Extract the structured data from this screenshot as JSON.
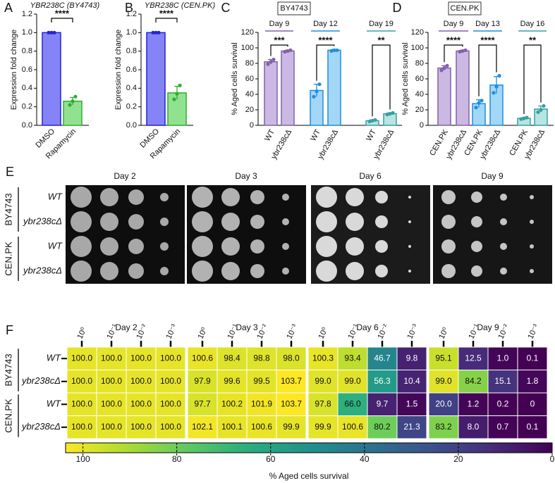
{
  "chart_data": [
    {
      "type": "bar",
      "panel": "A",
      "title": "YBR238C (BY4743)",
      "ylabel": "Expression fold change",
      "categories": [
        "DMSO",
        "Rapamycin"
      ],
      "values": [
        1.0,
        0.26
      ],
      "errors": [
        0,
        0.04
      ],
      "points": [
        [
          1,
          1,
          1
        ],
        [
          0.22,
          0.26,
          0.31
        ]
      ],
      "colors": [
        "#8484f7",
        "#90e290"
      ],
      "edge_colors": [
        "#2424d4",
        "#2fae2f"
      ],
      "significance": "****",
      "ylim": [
        0,
        1.2
      ],
      "yticks": [
        {
          "value": 0,
          "label": "0.0"
        },
        0.2,
        0.4,
        0.6,
        0.8,
        {
          "value": 1,
          "label": "1.0"
        },
        1.2
      ]
    },
    {
      "type": "bar",
      "panel": "B",
      "title": "YBR238C (CEN.PK)",
      "ylabel": "Expression fold change",
      "categories": [
        "DMSO",
        "Rapamycin"
      ],
      "values": [
        1.0,
        0.35
      ],
      "errors": [
        0,
        0.07
      ],
      "points": [
        [
          1,
          1,
          1
        ],
        [
          0.28,
          0.34,
          0.43
        ]
      ],
      "colors": [
        "#8484f7",
        "#90e290"
      ],
      "edge_colors": [
        "#2424d4",
        "#2fae2f"
      ],
      "significance": "****",
      "ylim": [
        0,
        1.2
      ],
      "yticks": [
        {
          "value": 0,
          "label": "0.0"
        },
        0.2,
        0.4,
        0.6,
        0.8,
        {
          "value": 1,
          "label": "1.0"
        },
        1.2
      ]
    },
    {
      "type": "grouped_bar",
      "panel": "C",
      "title": "BY4743",
      "ylabel": "% Aged cells survival",
      "ylim": [
        0,
        120
      ],
      "yticks": [
        0,
        20,
        40,
        60,
        80,
        100,
        120
      ],
      "groups": [
        {
          "name": "Day 9",
          "color": "#cbb9e3",
          "edge_color": "#8160ad",
          "categories": [
            "WT",
            "ybr238cΔ"
          ],
          "values": [
            82,
            96
          ],
          "errors": [
            3,
            1
          ],
          "points": [
            [
              79,
              82,
              85
            ],
            [
              95,
              96,
              97
            ]
          ],
          "significance": "***"
        },
        {
          "name": "Day 12",
          "color": "#a3d7f6",
          "edge_color": "#1e8ee0",
          "categories": [
            "WT",
            "ybr238cΔ"
          ],
          "values": [
            45,
            97
          ],
          "errors": [
            8,
            1
          ],
          "points": [
            [
              37,
              44,
              53
            ],
            [
              96,
              97,
              97
            ]
          ],
          "significance": "****"
        },
        {
          "name": "Day 19",
          "color": "#b8e4e4",
          "edge_color": "#38a0a0",
          "categories": [
            "WT",
            "ybr238cΔ"
          ],
          "values": [
            6,
            15
          ],
          "errors": [
            1,
            1
          ],
          "points": [
            [
              5,
              6,
              7
            ],
            [
              14,
              15,
              16
            ]
          ],
          "significance": "**"
        }
      ]
    },
    {
      "type": "grouped_bar",
      "panel": "D",
      "title": "CEN.PK",
      "ylabel": "% Aged cells survival",
      "ylim": [
        0,
        120
      ],
      "yticks": [
        0,
        20,
        40,
        60,
        80,
        100,
        120
      ],
      "groups": [
        {
          "name": "Day 9",
          "color": "#cbb9e3",
          "edge_color": "#8160ad",
          "categories": [
            "CEN.PK",
            "ybr238cΔ"
          ],
          "values": [
            74,
            96
          ],
          "errors": [
            3,
            1
          ],
          "points": [
            [
              71,
              74,
              77
            ],
            [
              95,
              96,
              97
            ]
          ],
          "significance": "****"
        },
        {
          "name": "Day 13",
          "color": "#a3d7f6",
          "edge_color": "#1e8ee0",
          "categories": [
            "CEN.PK",
            "ybr238cΔ"
          ],
          "values": [
            28,
            52
          ],
          "errors": [
            5,
            11
          ],
          "points": [
            [
              23,
              29,
              32
            ],
            [
              42,
              50,
              64
            ]
          ],
          "significance": "****"
        },
        {
          "name": "Day 16",
          "color": "#b8e4e4",
          "edge_color": "#38a0a0",
          "categories": [
            "CEN.PK",
            "ybr238cΔ"
          ],
          "values": [
            9,
            21
          ],
          "errors": [
            1,
            4
          ],
          "points": [
            [
              8,
              9,
              10
            ],
            [
              17,
              20,
              25
            ]
          ],
          "significance": "**"
        }
      ]
    },
    {
      "type": "heatmap",
      "panel": "F",
      "columns": [
        "Day 2",
        "Day 3",
        "Day 6",
        "Day 9"
      ],
      "dilutions": [
        "10⁰",
        "10⁻¹",
        "10⁻²",
        "10⁻³"
      ],
      "row_groups": [
        {
          "name": "BY4743",
          "rows": [
            "WT",
            "ybr238cΔ"
          ]
        },
        {
          "name": "CEN.PK",
          "rows": [
            "WT",
            "ybr238cΔ"
          ]
        }
      ],
      "values": [
        [
          100,
          100,
          100,
          100,
          100.6,
          98.4,
          98.8,
          98,
          100.3,
          93.4,
          46.7,
          9.8,
          95.1,
          12.5,
          1,
          0.1
        ],
        [
          100,
          100,
          100,
          100,
          97.9,
          99.6,
          99.5,
          103.7,
          99,
          99,
          56.3,
          10.4,
          99,
          84.2,
          15.1,
          1.8
        ],
        [
          100,
          100,
          100,
          100,
          97.7,
          100.2,
          101.9,
          103.7,
          97.8,
          66,
          9.7,
          1.5,
          20,
          1.2,
          0.2,
          0
        ],
        [
          100,
          100,
          100,
          100,
          102.1,
          100.1,
          100.6,
          99.9,
          99.9,
          100.6,
          80.2,
          21.3,
          83.2,
          8,
          0.7,
          0.1
        ]
      ],
      "value_labels": [
        [
          "100.0",
          "100.0",
          "100.0",
          "100.0",
          "100.6",
          "98.4",
          "98.8",
          "98.0",
          "100.3",
          "93.4",
          "46.7",
          "9.8",
          "95.1",
          "12.5",
          "1.0",
          "0.1"
        ],
        [
          "100.0",
          "100.0",
          "100.0",
          "100.0",
          "97.9",
          "99.6",
          "99.5",
          "103.7",
          "99.0",
          "99.0",
          "56.3",
          "10.4",
          "99.0",
          "84.2",
          "15.1",
          "1.8"
        ],
        [
          "100.0",
          "100.0",
          "100.0",
          "100.0",
          "97.7",
          "100.2",
          "101.9",
          "103.7",
          "97.8",
          "66.0",
          "9.7",
          "1.5",
          "20.0",
          "1.2",
          "0.2",
          "0"
        ],
        [
          "100.0",
          "100.0",
          "100.0",
          "100.0",
          "102.1",
          "100.1",
          "100.6",
          "99.9",
          "99.9",
          "100.6",
          "80.2",
          "21.3",
          "83.2",
          "8.0",
          "0.7",
          "0.1"
        ]
      ],
      "colormap": "viridis",
      "clim": [
        103.7,
        0
      ],
      "colorbar_ticks": [
        100,
        80,
        60,
        40,
        20,
        0
      ],
      "colorbar_label": "% Aged cells survival"
    }
  ],
  "spot_assay": {
    "panel": "E",
    "columns": [
      "Day 2",
      "Day 3",
      "Day 6",
      "Day 9"
    ],
    "row_groups": [
      {
        "name": "BY4743",
        "rows": [
          "WT",
          "ybr238cΔ"
        ]
      },
      {
        "name": "CEN.PK",
        "rows": [
          "WT",
          "ybr238cΔ"
        ]
      }
    ]
  }
}
